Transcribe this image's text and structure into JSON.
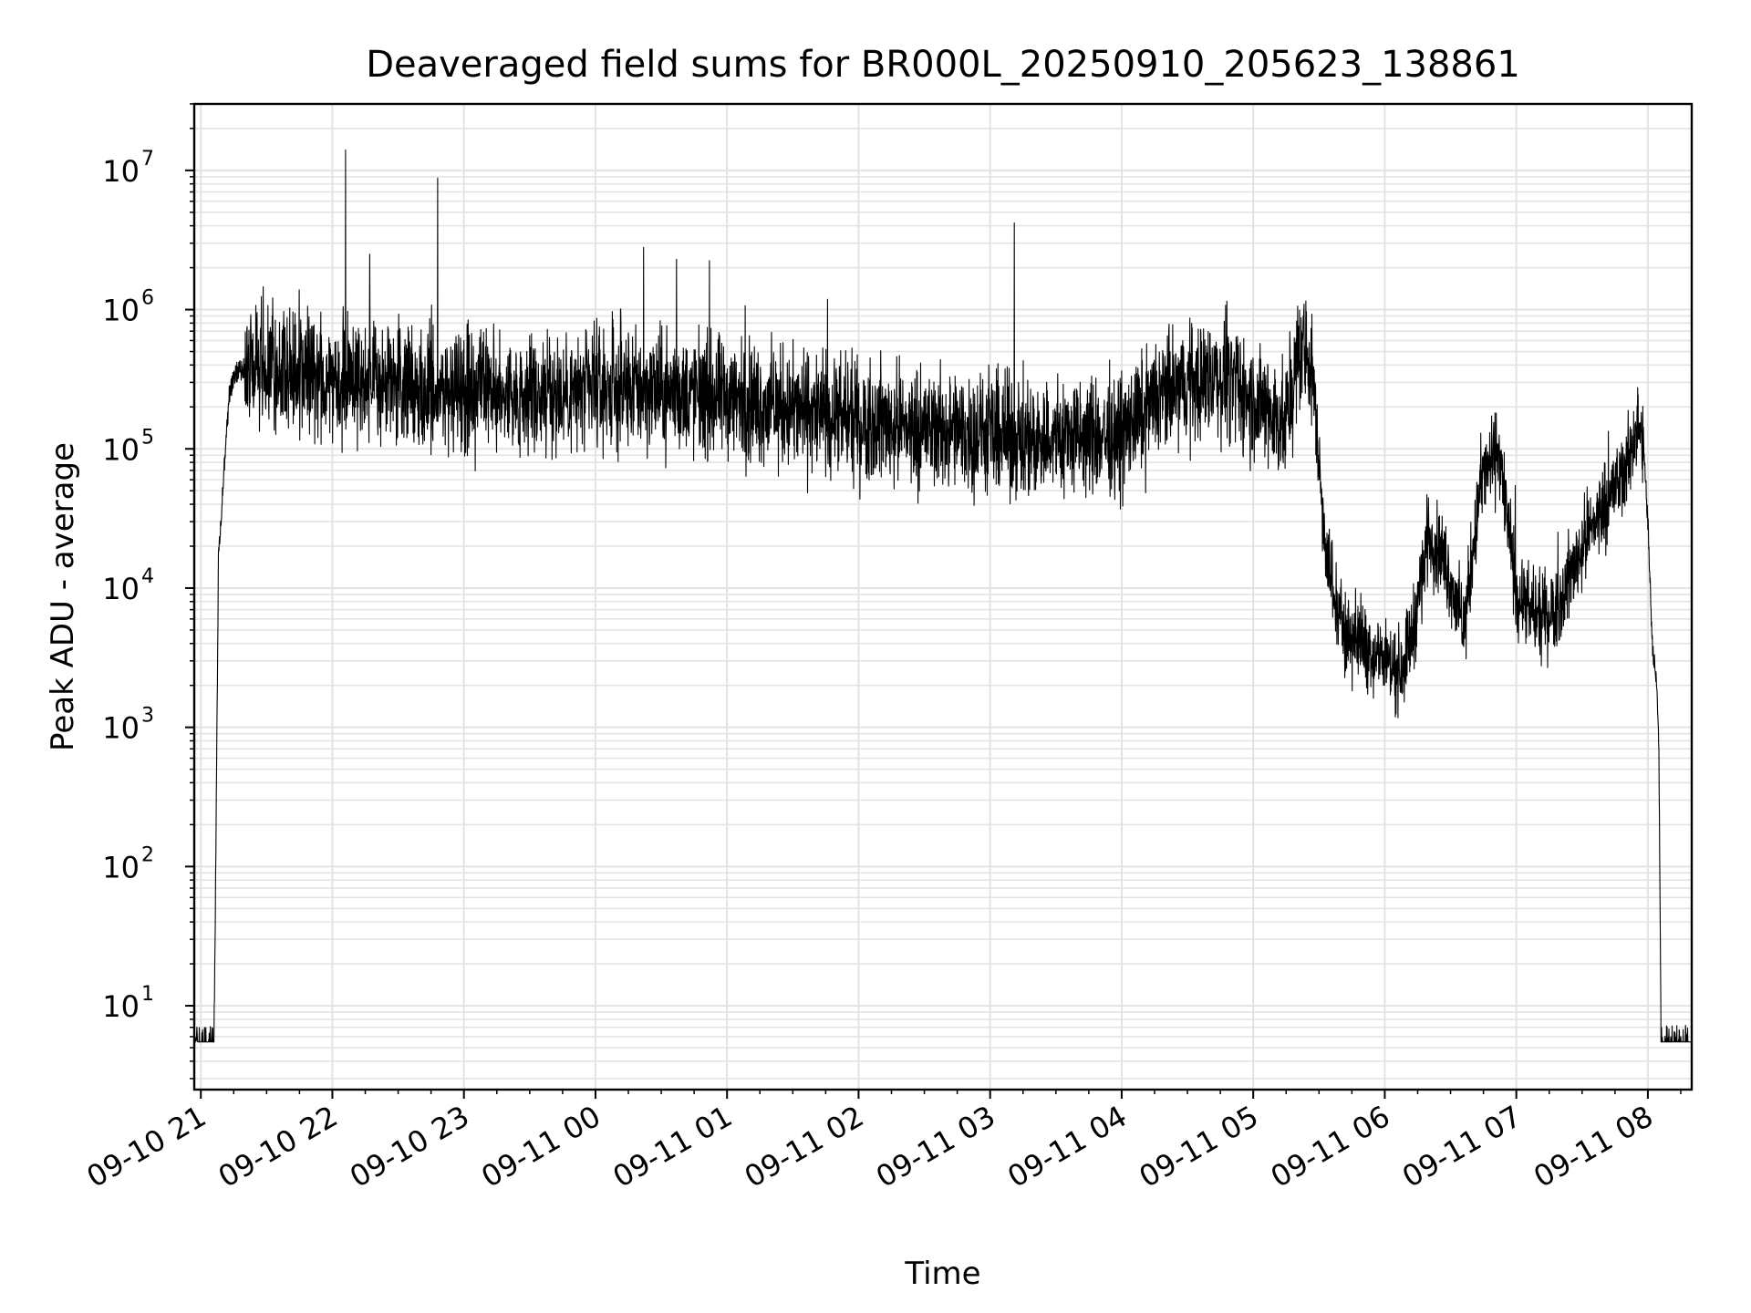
{
  "chart_data": {
    "type": "line",
    "title": "Deaveraged field sums for BR000L_20250910_205623_138861",
    "xlabel": "Time",
    "ylabel": "Peak ADU - average",
    "y_scale": "log",
    "ylim": [
      2.5,
      30000000
    ],
    "xlim": [
      "09-10 20:57",
      "09-11 08:20"
    ],
    "grid": true,
    "legend": "none",
    "line_color": "#000000",
    "grid_color": "#e3e3e3",
    "x_ticks": [
      {
        "value": "09-10 21:00",
        "label": "09-10 21"
      },
      {
        "value": "09-10 22:00",
        "label": "09-10 22"
      },
      {
        "value": "09-10 23:00",
        "label": "09-10 23"
      },
      {
        "value": "09-11 00:00",
        "label": "09-11 00"
      },
      {
        "value": "09-11 01:00",
        "label": "09-11 01"
      },
      {
        "value": "09-11 02:00",
        "label": "09-11 02"
      },
      {
        "value": "09-11 03:00",
        "label": "09-11 03"
      },
      {
        "value": "09-11 04:00",
        "label": "09-11 04"
      },
      {
        "value": "09-11 05:00",
        "label": "09-11 05"
      },
      {
        "value": "09-11 06:00",
        "label": "09-11 06"
      },
      {
        "value": "09-11 07:00",
        "label": "09-11 07"
      },
      {
        "value": "09-11 08:00",
        "label": "09-11 08"
      }
    ],
    "y_ticks": [
      {
        "value": 10,
        "base": "10",
        "exp": "1"
      },
      {
        "value": 100,
        "base": "10",
        "exp": "2"
      },
      {
        "value": 1000,
        "base": "10",
        "exp": "3"
      },
      {
        "value": 10000,
        "base": "10",
        "exp": "4"
      },
      {
        "value": 100000,
        "base": "10",
        "exp": "5"
      },
      {
        "value": 1000000,
        "base": "10",
        "exp": "6"
      },
      {
        "value": 10000000,
        "base": "10",
        "exp": "7"
      }
    ],
    "series": [
      {
        "x": [
          "09-10 20:57",
          "09-10 21:06",
          "09-10 21:07",
          "09-10 21:08",
          "09-10 21:10",
          "09-10 21:13",
          "09-10 21:16",
          "09-10 21:20",
          "09-10 21:25",
          "09-10 21:30",
          "09-10 21:40",
          "09-10 21:50",
          "09-10 22:00",
          "09-10 22:10",
          "09-10 22:20",
          "09-10 22:30",
          "09-10 22:45",
          "09-10 23:00",
          "09-10 23:15",
          "09-10 23:30",
          "09-10 23:45",
          "09-11 00:00",
          "09-11 00:15",
          "09-11 00:30",
          "09-11 00:45",
          "09-11 01:00",
          "09-11 01:15",
          "09-11 01:30",
          "09-11 01:45",
          "09-11 02:00",
          "09-11 02:15",
          "09-11 02:30",
          "09-11 02:45",
          "09-11 03:00",
          "09-11 03:15",
          "09-11 03:30",
          "09-11 03:45",
          "09-11 04:00",
          "09-11 04:15",
          "09-11 04:30",
          "09-11 04:45",
          "09-11 04:55",
          "09-11 05:05",
          "09-11 05:15",
          "09-11 05:22",
          "09-11 05:27",
          "09-11 05:32",
          "09-11 05:37",
          "09-11 05:42",
          "09-11 05:50",
          "09-11 06:00",
          "09-11 06:07",
          "09-11 06:13",
          "09-11 06:20",
          "09-11 06:28",
          "09-11 06:36",
          "09-11 06:44",
          "09-11 06:52",
          "09-11 07:00",
          "09-11 07:10",
          "09-11 07:20",
          "09-11 07:30",
          "09-11 07:40",
          "09-11 07:50",
          "09-11 07:55",
          "09-11 07:58",
          "09-11 08:00",
          "09-11 08:02",
          "09-11 08:04",
          "09-11 08:05",
          "09-11 08:06",
          "09-11 08:20"
        ],
        "y": [
          5.5,
          5.5,
          200,
          15000,
          50000,
          250000,
          350000,
          380000,
          400000,
          390000,
          370000,
          340000,
          350000,
          320000,
          300000,
          280000,
          270000,
          260000,
          255000,
          250000,
          255000,
          260000,
          270000,
          260000,
          240000,
          230000,
          210000,
          190000,
          175000,
          160000,
          150000,
          140000,
          130000,
          125000,
          120000,
          118000,
          120000,
          125000,
          220000,
          300000,
          330000,
          250000,
          190000,
          150000,
          600000,
          350000,
          30000,
          8000,
          5000,
          4000,
          3000,
          2500,
          5000,
          25000,
          15000,
          5000,
          60000,
          100000,
          9000,
          6000,
          8000,
          20000,
          40000,
          70000,
          150000,
          100000,
          30000,
          4000,
          2000,
          800,
          5.5,
          5.5
        ]
      }
    ],
    "spikes": [
      {
        "x": "09-10 22:06",
        "y": 14000000
      },
      {
        "x": "09-10 22:17",
        "y": 2500000
      },
      {
        "x": "09-10 22:48",
        "y": 8800000
      },
      {
        "x": "09-11 00:22",
        "y": 2800000
      },
      {
        "x": "09-11 00:37",
        "y": 2300000
      },
      {
        "x": "09-11 00:52",
        "y": 2250000
      },
      {
        "x": "09-11 03:11",
        "y": 4200000
      },
      {
        "x": "09-11 04:48",
        "y": 1150000
      }
    ]
  }
}
